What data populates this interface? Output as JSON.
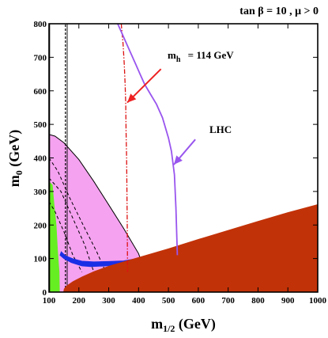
{
  "chart_data": {
    "type": "area",
    "title": "tan β = 10 ,  μ > 0",
    "xlabel_main": "m",
    "xlabel_sub": "1/2",
    "xlabel_unit": " (GeV)",
    "ylabel_main": "m",
    "ylabel_sub": "0",
    "ylabel_unit": " (GeV)",
    "xlim": [
      100,
      1000
    ],
    "ylim": [
      0,
      800
    ],
    "xticks": [
      100,
      200,
      300,
      400,
      500,
      600,
      700,
      800,
      900,
      1000
    ],
    "yticks": [
      0,
      100,
      200,
      300,
      400,
      500,
      600,
      700,
      800
    ],
    "grid": false,
    "annotations": {
      "mh": {
        "main": "m",
        "sub": "h",
        "rest": " = 114 GeV"
      },
      "lhc": "LHC"
    },
    "colors": {
      "charged_lsp": "#c23208",
      "g_minus_2": "#f5a2f0",
      "b_s_gamma": "#66ee22",
      "relic_density": "#1a2ee6",
      "lhc_curve": "#9955ee",
      "mh_line": "#dd1111",
      "arrow": "#ee2222"
    },
    "regions": {
      "charged_lsp": [
        [
          100,
          0
        ],
        [
          1000,
          0
        ],
        [
          1000,
          262
        ],
        [
          900,
          238
        ],
        [
          800,
          212
        ],
        [
          700,
          185
        ],
        [
          600,
          158
        ],
        [
          500,
          130
        ],
        [
          400,
          104
        ],
        [
          300,
          78
        ],
        [
          250,
          62
        ],
        [
          210,
          46
        ],
        [
          180,
          32
        ],
        [
          160,
          20
        ],
        [
          150,
          10
        ],
        [
          148,
          0
        ]
      ],
      "g_minus_2": [
        [
          100,
          470
        ],
        [
          120,
          465
        ],
        [
          150,
          445
        ],
        [
          200,
          395
        ],
        [
          250,
          330
        ],
        [
          300,
          260
        ],
        [
          350,
          190
        ],
        [
          400,
          115
        ],
        [
          410,
          90
        ],
        [
          380,
          70
        ],
        [
          300,
          55
        ],
        [
          240,
          45
        ],
        [
          200,
          30
        ],
        [
          160,
          15
        ],
        [
          150,
          0
        ],
        [
          100,
          0
        ]
      ],
      "b_s_gamma": [
        [
          100,
          330
        ],
        [
          112,
          320
        ],
        [
          118,
          260
        ],
        [
          125,
          200
        ],
        [
          130,
          120
        ],
        [
          135,
          60
        ],
        [
          136,
          0
        ],
        [
          100,
          0
        ]
      ],
      "relic_density": [
        [
          137,
          110
        ],
        [
          150,
          100
        ],
        [
          175,
          88
        ],
        [
          210,
          78
        ],
        [
          240,
          76
        ],
        [
          290,
          78
        ],
        [
          340,
          82
        ],
        [
          400,
          92
        ],
        [
          450,
          103
        ],
        [
          500,
          114
        ],
        [
          550,
          124
        ],
        [
          600,
          133
        ],
        [
          650,
          145
        ],
        [
          700,
          157
        ],
        [
          750,
          170
        ],
        [
          800,
          185
        ],
        [
          850,
          196
        ],
        [
          830,
          200
        ],
        [
          780,
          190
        ],
        [
          730,
          176
        ],
        [
          680,
          163
        ],
        [
          630,
          151
        ],
        [
          580,
          140
        ],
        [
          530,
          130
        ],
        [
          480,
          119
        ],
        [
          430,
          107
        ],
        [
          390,
          99
        ],
        [
          350,
          93
        ],
        [
          300,
          91
        ],
        [
          250,
          90
        ],
        [
          210,
          92
        ],
        [
          180,
          99
        ],
        [
          155,
          108
        ],
        [
          141,
          120
        ],
        [
          137,
          110
        ]
      ]
    },
    "series": [
      {
        "label": "LHC",
        "x": [
          330,
          345,
          360,
          375,
          390,
          405,
          420,
          440,
          460,
          480,
          500,
          510,
          520,
          525,
          530
        ],
        "y": [
          800,
          770,
          740,
          710,
          680,
          650,
          620,
          590,
          560,
          520,
          460,
          420,
          350,
          250,
          110
        ]
      },
      {
        "label": "m_h = 114 GeV",
        "x": [
          342,
          348,
          352,
          355,
          357,
          358,
          360,
          361,
          362,
          363
        ],
        "y": [
          800,
          740,
          680,
          620,
          560,
          480,
          400,
          300,
          200,
          60
        ]
      },
      {
        "x": [
          100,
          140,
          180,
          220,
          250
        ],
        "y": [
          340,
          300,
          220,
          140,
          60
        ]
      },
      {
        "x": [
          100,
          130,
          170,
          220,
          260,
          290
        ],
        "y": [
          400,
          360,
          280,
          190,
          120,
          60
        ]
      },
      {
        "x": [
          100,
          120,
          150,
          180,
          210
        ],
        "y": [
          270,
          240,
          180,
          110,
          60
        ]
      },
      {
        "x": [
          102,
          102
        ],
        "y": [
          0,
          800
        ]
      },
      {
        "x": [
          155,
          155
        ],
        "y": [
          0,
          800
        ]
      },
      {
        "x": [
          161,
          161
        ],
        "y": [
          0,
          800
        ]
      }
    ]
  }
}
